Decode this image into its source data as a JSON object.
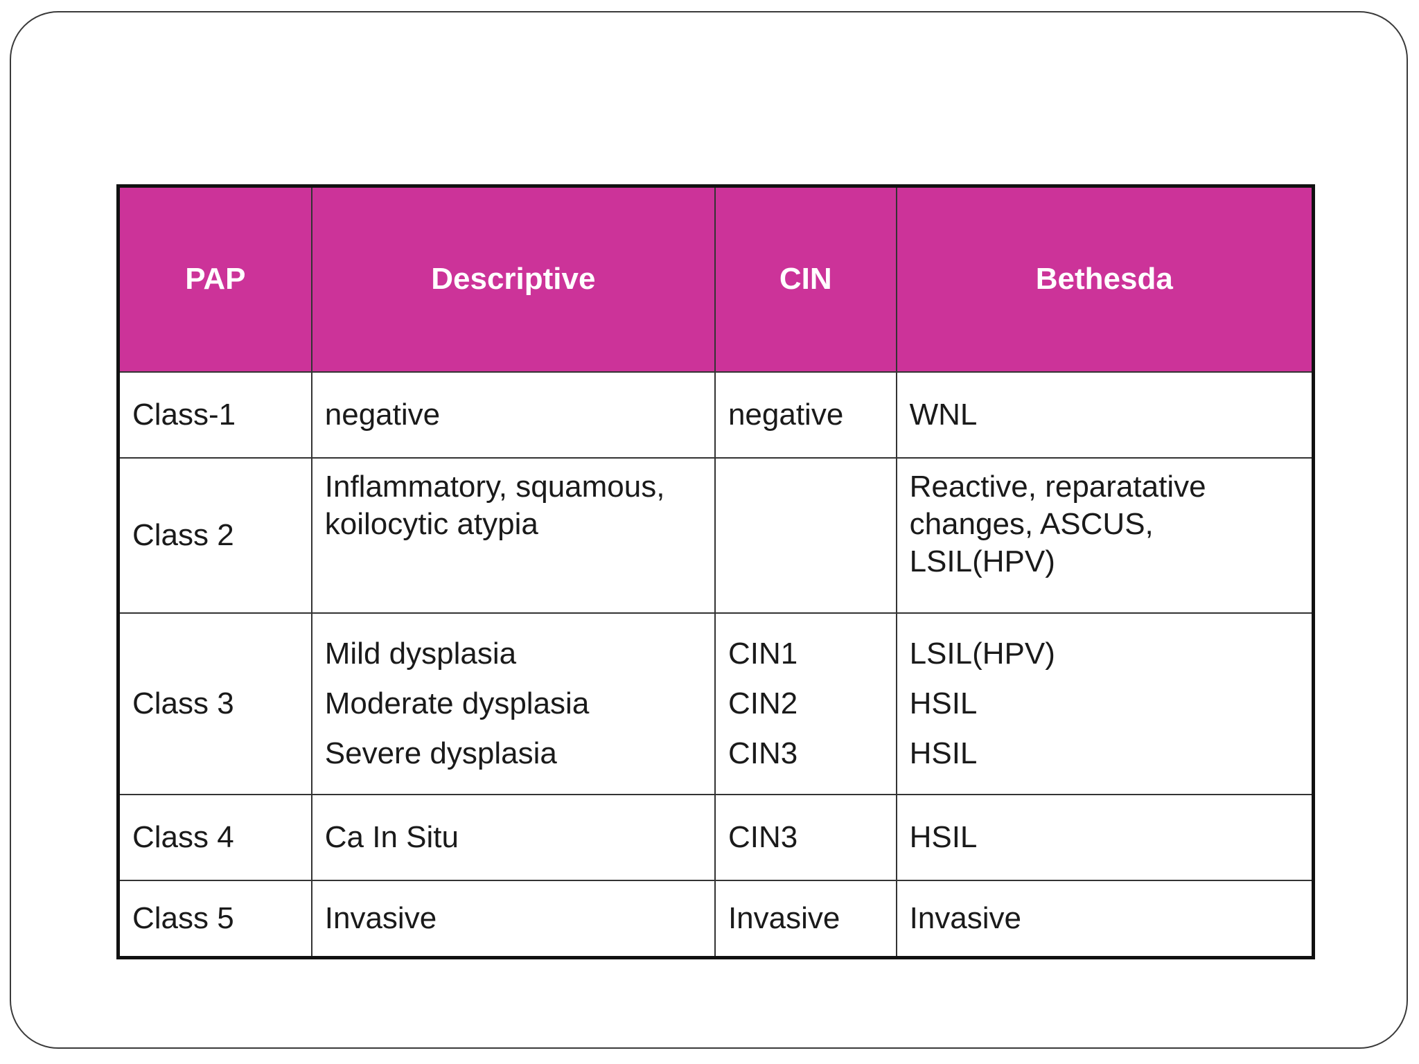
{
  "table": {
    "headers": [
      "PAP",
      "Descriptive",
      "CIN",
      "Bethesda"
    ],
    "rows": [
      {
        "pap": "Class-1",
        "descriptive": [
          "negative"
        ],
        "cin": [
          "negative"
        ],
        "bethesda": [
          "WNL"
        ]
      },
      {
        "pap": "Class 2",
        "descriptive": [
          "Inflammatory, squamous,",
          "koilocytic atypia"
        ],
        "cin": [],
        "bethesda": [
          "Reactive, reparatative",
          "changes, ASCUS,",
          "LSIL(HPV)"
        ]
      },
      {
        "pap": "Class 3",
        "descriptive": [
          "Mild dysplasia",
          "Moderate dysplasia",
          "Severe dysplasia"
        ],
        "cin": [
          "CIN1",
          "CIN2",
          "CIN3"
        ],
        "bethesda": [
          "LSIL(HPV)",
          "HSIL",
          "HSIL"
        ]
      },
      {
        "pap": "Class 4",
        "descriptive": [
          "Ca In Situ"
        ],
        "cin": [
          "CIN3"
        ],
        "bethesda": [
          "HSIL"
        ]
      },
      {
        "pap": "Class 5",
        "descriptive": [
          "Invasive"
        ],
        "cin": [
          "Invasive"
        ],
        "bethesda": [
          "Invasive"
        ]
      }
    ]
  },
  "colors": {
    "header_background": "#cc3399",
    "header_text": "#ffffff",
    "border": "#111111"
  }
}
